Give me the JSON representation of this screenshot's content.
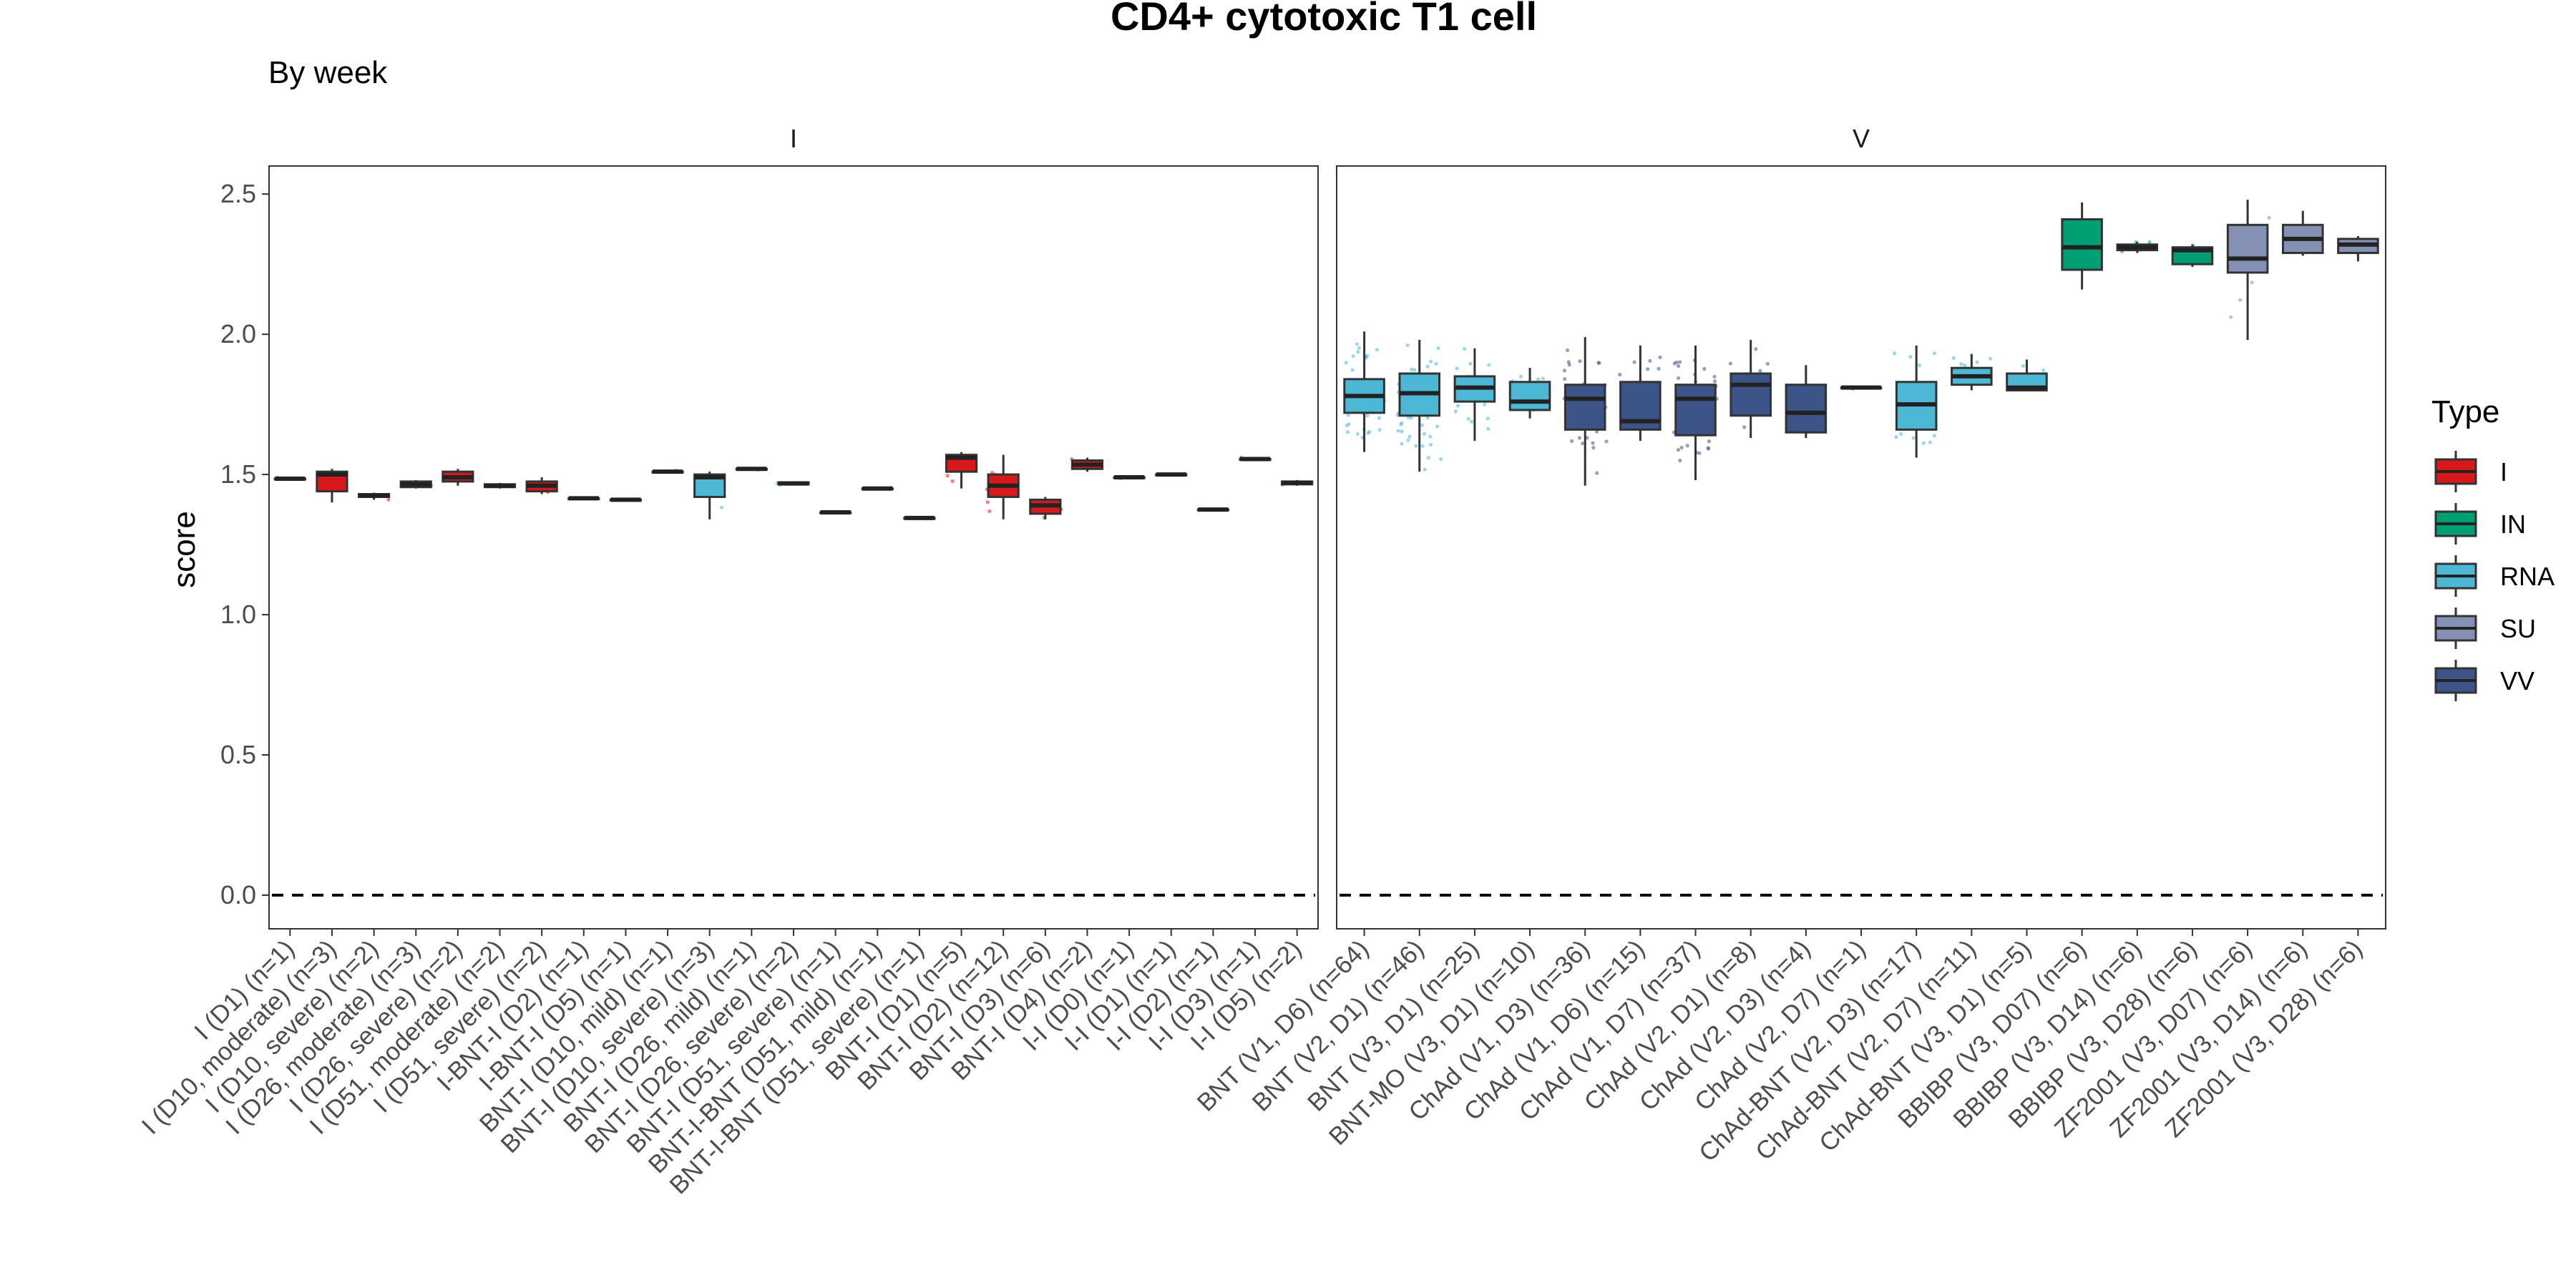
{
  "chart_data": {
    "type": "box",
    "title": "CD4+ cytotoxic T1 cell",
    "subtitle": "By week",
    "ylabel": "score",
    "xlabel": "",
    "ylim": [
      -0.12,
      2.6
    ],
    "yticks": [
      "0.0",
      "0.5",
      "1.0",
      "1.5",
      "2.0",
      "2.5"
    ],
    "reference_line": 0,
    "grid": false,
    "legend": {
      "title": "Type",
      "placement": "right",
      "items": [
        {
          "label": "I",
          "color": "#d7191c"
        },
        {
          "label": "IN",
          "color": "#009e73"
        },
        {
          "label": "RNA",
          "color": "#4cb8d6"
        },
        {
          "label": "SU",
          "color": "#8491b4"
        },
        {
          "label": "VV",
          "color": "#3c5488"
        }
      ]
    },
    "panels": [
      {
        "name": "I",
        "boxes": [
          {
            "label": "I (D1) (n=1)",
            "type": "I",
            "q1": 1.485,
            "median": 1.485,
            "q3": 1.485,
            "min": 1.485,
            "max": 1.485
          },
          {
            "label": "I (D10, moderate) (n=3)",
            "type": "I",
            "q1": 1.44,
            "median": 1.5,
            "q3": 1.51,
            "min": 1.4,
            "max": 1.52
          },
          {
            "label": "I (D10, severe) (n=2)",
            "type": "I",
            "q1": 1.42,
            "median": 1.425,
            "q3": 1.43,
            "min": 1.41,
            "max": 1.435
          },
          {
            "label": "I (D26, moderate) (n=3)",
            "type": "I",
            "q1": 1.455,
            "median": 1.465,
            "q3": 1.475,
            "min": 1.45,
            "max": 1.48
          },
          {
            "label": "I (D26, severe) (n=2)",
            "type": "I",
            "q1": 1.475,
            "median": 1.49,
            "q3": 1.51,
            "min": 1.46,
            "max": 1.52
          },
          {
            "label": "I (D51, moderate) (n=2)",
            "type": "I",
            "q1": 1.455,
            "median": 1.46,
            "q3": 1.465,
            "min": 1.45,
            "max": 1.47
          },
          {
            "label": "I (D51, severe) (n=2)",
            "type": "I",
            "q1": 1.44,
            "median": 1.46,
            "q3": 1.475,
            "min": 1.43,
            "max": 1.49
          },
          {
            "label": "I-BNT-I (D2) (n=1)",
            "type": "I",
            "q1": 1.415,
            "median": 1.415,
            "q3": 1.415,
            "min": 1.415,
            "max": 1.415
          },
          {
            "label": "I-BNT-I (D5) (n=1)",
            "type": "I",
            "q1": 1.41,
            "median": 1.41,
            "q3": 1.41,
            "min": 1.41,
            "max": 1.41
          },
          {
            "label": "BNT-I (D10, mild) (n=1)",
            "type": "RNA",
            "q1": 1.51,
            "median": 1.51,
            "q3": 1.51,
            "min": 1.51,
            "max": 1.51
          },
          {
            "label": "BNT-I (D10, severe) (n=3)",
            "type": "RNA",
            "q1": 1.42,
            "median": 1.49,
            "q3": 1.5,
            "min": 1.34,
            "max": 1.51
          },
          {
            "label": "BNT-I (D26, mild) (n=1)",
            "type": "RNA",
            "q1": 1.52,
            "median": 1.52,
            "q3": 1.52,
            "min": 1.52,
            "max": 1.52
          },
          {
            "label": "BNT-I (D26, severe) (n=2)",
            "type": "RNA",
            "q1": 1.465,
            "median": 1.468,
            "q3": 1.472,
            "min": 1.463,
            "max": 1.475
          },
          {
            "label": "BNT-I (D51, severe) (n=1)",
            "type": "RNA",
            "q1": 1.365,
            "median": 1.365,
            "q3": 1.365,
            "min": 1.365,
            "max": 1.365
          },
          {
            "label": "BNT-I-BNT (D51, mild) (n=1)",
            "type": "RNA",
            "q1": 1.45,
            "median": 1.45,
            "q3": 1.45,
            "min": 1.45,
            "max": 1.45
          },
          {
            "label": "BNT-I-BNT (D51, severe) (n=1)",
            "type": "RNA",
            "q1": 1.345,
            "median": 1.345,
            "q3": 1.345,
            "min": 1.345,
            "max": 1.345
          },
          {
            "label": "BNT-I (D1) (n=5)",
            "type": "I",
            "q1": 1.51,
            "median": 1.56,
            "q3": 1.57,
            "min": 1.45,
            "max": 1.58
          },
          {
            "label": "BNT-I (D2) (n=12)",
            "type": "I",
            "q1": 1.42,
            "median": 1.46,
            "q3": 1.5,
            "min": 1.34,
            "max": 1.57
          },
          {
            "label": "BNT-I (D3) (n=6)",
            "type": "I",
            "q1": 1.36,
            "median": 1.39,
            "q3": 1.41,
            "min": 1.34,
            "max": 1.42
          },
          {
            "label": "BNT-I (D4) (n=2)",
            "type": "I",
            "q1": 1.52,
            "median": 1.535,
            "q3": 1.55,
            "min": 1.51,
            "max": 1.56
          },
          {
            "label": "I-I (D0) (n=1)",
            "type": "I",
            "q1": 1.49,
            "median": 1.49,
            "q3": 1.49,
            "min": 1.49,
            "max": 1.49
          },
          {
            "label": "I-I (D1) (n=1)",
            "type": "I",
            "q1": 1.5,
            "median": 1.5,
            "q3": 1.5,
            "min": 1.5,
            "max": 1.5
          },
          {
            "label": "I-I (D2) (n=1)",
            "type": "I",
            "q1": 1.375,
            "median": 1.375,
            "q3": 1.375,
            "min": 1.375,
            "max": 1.375
          },
          {
            "label": "I-I (D3) (n=1)",
            "type": "I",
            "q1": 1.555,
            "median": 1.555,
            "q3": 1.555,
            "min": 1.555,
            "max": 1.555
          },
          {
            "label": "I-I (D5) (n=2)",
            "type": "I",
            "q1": 1.465,
            "median": 1.47,
            "q3": 1.475,
            "min": 1.46,
            "max": 1.48
          }
        ]
      },
      {
        "name": "V",
        "boxes": [
          {
            "label": "BNT (V1, D6) (n=64)",
            "type": "RNA",
            "q1": 1.72,
            "median": 1.78,
            "q3": 1.84,
            "min": 1.58,
            "max": 2.01
          },
          {
            "label": "BNT (V2, D1) (n=46)",
            "type": "RNA",
            "q1": 1.71,
            "median": 1.79,
            "q3": 1.86,
            "min": 1.51,
            "max": 1.98
          },
          {
            "label": "BNT (V3, D1) (n=25)",
            "type": "RNA",
            "q1": 1.76,
            "median": 1.81,
            "q3": 1.85,
            "min": 1.62,
            "max": 1.95
          },
          {
            "label": "BNT-MO (V3, D1) (n=10)",
            "type": "RNA",
            "q1": 1.73,
            "median": 1.76,
            "q3": 1.83,
            "min": 1.7,
            "max": 1.88
          },
          {
            "label": "ChAd (V1, D3) (n=36)",
            "type": "VV",
            "q1": 1.66,
            "median": 1.77,
            "q3": 1.82,
            "min": 1.46,
            "max": 1.99
          },
          {
            "label": "ChAd (V1, D6) (n=15)",
            "type": "VV",
            "q1": 1.66,
            "median": 1.69,
            "q3": 1.83,
            "min": 1.62,
            "max": 1.96
          },
          {
            "label": "ChAd (V1, D7) (n=37)",
            "type": "VV",
            "q1": 1.64,
            "median": 1.77,
            "q3": 1.82,
            "min": 1.48,
            "max": 1.96
          },
          {
            "label": "ChAd (V2, D1) (n=8)",
            "type": "VV",
            "q1": 1.71,
            "median": 1.82,
            "q3": 1.86,
            "min": 1.63,
            "max": 1.98
          },
          {
            "label": "ChAd (V2, D3) (n=4)",
            "type": "VV",
            "q1": 1.65,
            "median": 1.72,
            "q3": 1.82,
            "min": 1.63,
            "max": 1.89
          },
          {
            "label": "ChAd (V2, D7) (n=1)",
            "type": "VV",
            "q1": 1.81,
            "median": 1.81,
            "q3": 1.81,
            "min": 1.81,
            "max": 1.81
          },
          {
            "label": "ChAd-BNT (V2, D3) (n=17)",
            "type": "RNA",
            "q1": 1.66,
            "median": 1.75,
            "q3": 1.83,
            "min": 1.56,
            "max": 1.96
          },
          {
            "label": "ChAd-BNT (V2, D7) (n=11)",
            "type": "RNA",
            "q1": 1.82,
            "median": 1.85,
            "q3": 1.88,
            "min": 1.8,
            "max": 1.93
          },
          {
            "label": "ChAd-BNT (V3, D1) (n=5)",
            "type": "RNA",
            "q1": 1.8,
            "median": 1.81,
            "q3": 1.86,
            "min": 1.8,
            "max": 1.91
          },
          {
            "label": "BBIBP (V3, D07) (n=6)",
            "type": "IN",
            "q1": 2.23,
            "median": 2.31,
            "q3": 2.41,
            "min": 2.16,
            "max": 2.47
          },
          {
            "label": "BBIBP (V3, D14) (n=6)",
            "type": "IN",
            "q1": 2.3,
            "median": 2.31,
            "q3": 2.32,
            "min": 2.29,
            "max": 2.33
          },
          {
            "label": "BBIBP (V3, D28) (n=6)",
            "type": "IN",
            "q1": 2.25,
            "median": 2.3,
            "q3": 2.31,
            "min": 2.24,
            "max": 2.32
          },
          {
            "label": "ZF2001 (V3, D07) (n=6)",
            "type": "SU",
            "q1": 2.22,
            "median": 2.27,
            "q3": 2.39,
            "min": 1.98,
            "max": 2.48
          },
          {
            "label": "ZF2001 (V3, D14) (n=6)",
            "type": "SU",
            "q1": 2.29,
            "median": 2.34,
            "q3": 2.39,
            "min": 2.28,
            "max": 2.44
          },
          {
            "label": "ZF2001 (V3, D28) (n=6)",
            "type": "SU",
            "q1": 2.29,
            "median": 2.32,
            "q3": 2.34,
            "min": 2.26,
            "max": 2.35
          }
        ]
      }
    ]
  }
}
